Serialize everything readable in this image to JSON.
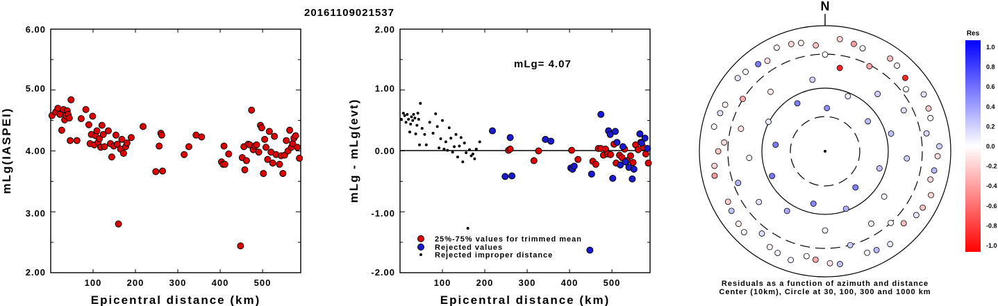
{
  "title": "20161109021537",
  "colors": {
    "accepted": "#dd0000",
    "rejected": "#1a1ad0",
    "improper": "#000000"
  },
  "left_panel": {
    "ylabel": "mLg(IASPEI)",
    "xlabel": "Epicentral distance (km)",
    "ytick_labels": [
      "6.00",
      "5.00",
      "4.00",
      "3.00",
      "2.00"
    ],
    "xtick_labels": [
      "100",
      "200",
      "300",
      "400",
      "500"
    ]
  },
  "mid_panel": {
    "ylabel": "mLg - mLg(evt)",
    "xlabel": "Epicentral distance (km)",
    "ytick_labels": [
      "2.00",
      "1.00",
      "0.00",
      "-1.00",
      "-2.00"
    ],
    "xtick_labels": [
      "100",
      "200",
      "300",
      "400",
      "500"
    ],
    "annotation": "mLg= 4.07",
    "legend": [
      {
        "label": "25%-75% values for trimmed mean",
        "kind": "accepted"
      },
      {
        "label": "Rejected values",
        "kind": "rejected"
      },
      {
        "label": "Rejected improper distance",
        "kind": "improper"
      }
    ]
  },
  "polar_panel": {
    "north_label": "N",
    "caption_line1": "Residuals as a function of azimuth and distance",
    "caption_line2": "Center (10km), Circle at 30, 100, 300 and 1000 km"
  },
  "colorbar": {
    "title": "Res",
    "tick_labels": [
      "1.0",
      "0.8",
      "0.6",
      "0.4",
      "0.2",
      "0.0",
      "-0.2",
      "-0.4",
      "-0.6",
      "-0.8",
      "-1.0"
    ]
  },
  "chart_data": [
    {
      "type": "scatter",
      "title": "20161109021537",
      "xlabel": "Epicentral distance (km)",
      "ylabel": "mLg(IASPEI)",
      "xlim": [
        0,
        590
      ],
      "ylim": [
        2.0,
        6.0
      ],
      "series": [
        {
          "kind": "accepted",
          "points": [
            [
              3,
              4.58
            ],
            [
              12,
              4.64
            ],
            [
              17,
              4.7
            ],
            [
              22,
              4.6
            ],
            [
              26,
              4.34
            ],
            [
              30,
              4.68
            ],
            [
              33,
              4.51
            ],
            [
              36,
              4.58
            ],
            [
              39,
              4.66
            ],
            [
              41,
              4.6
            ],
            [
              44,
              4.54
            ],
            [
              46,
              4.17
            ],
            [
              48,
              4.84
            ],
            [
              62,
              4.17
            ],
            [
              72,
              4.53
            ],
            [
              83,
              4.68
            ],
            [
              90,
              4.43
            ],
            [
              93,
              4.12
            ],
            [
              96,
              4.27
            ],
            [
              99,
              4.57
            ],
            [
              103,
              4.1
            ],
            [
              106,
              4.25
            ],
            [
              109,
              4.33
            ],
            [
              112,
              4.14
            ],
            [
              115,
              4.2
            ],
            [
              118,
              4.06
            ],
            [
              121,
              4.42
            ],
            [
              124,
              4.27
            ],
            [
              127,
              4.07
            ],
            [
              136,
              4.33
            ],
            [
              141,
              4.12
            ],
            [
              144,
              3.9
            ],
            [
              149,
              4.08
            ],
            [
              154,
              4.26
            ],
            [
              157,
              4.11
            ],
            [
              160,
              2.8
            ],
            [
              165,
              4.03
            ],
            [
              168,
              4.19
            ],
            [
              172,
              3.96
            ],
            [
              177,
              4.07
            ],
            [
              180,
              4.13
            ],
            [
              190,
              4.22
            ],
            [
              218,
              4.4
            ],
            [
              248,
              3.66
            ],
            [
              256,
              4.08
            ],
            [
              260,
              4.29
            ],
            [
              262,
              4.26
            ],
            [
              264,
              3.67
            ],
            [
              315,
              3.94
            ],
            [
              326,
              4.07
            ],
            [
              343,
              4.26
            ],
            [
              356,
              4.23
            ],
            [
              403,
              3.82
            ],
            [
              407,
              3.78
            ],
            [
              409,
              4.08
            ],
            [
              411,
              3.78
            ],
            [
              420,
              3.95
            ],
            [
              448,
              2.44
            ],
            [
              452,
              3.89
            ],
            [
              456,
              4.07
            ],
            [
              458,
              3.69
            ],
            [
              462,
              3.84
            ],
            [
              466,
              4.11
            ],
            [
              470,
              4.1
            ],
            [
              474,
              4.67
            ],
            [
              478,
              4.02
            ],
            [
              482,
              4.08
            ],
            [
              486,
              4.1
            ],
            [
              491,
              3.98
            ],
            [
              495,
              4.42
            ],
            [
              498,
              4.38
            ],
            [
              502,
              3.63
            ],
            [
              505,
              4.19
            ],
            [
              508,
              4.06
            ],
            [
              512,
              3.86
            ],
            [
              516,
              4.32
            ],
            [
              520,
              3.98
            ],
            [
              524,
              3.8
            ],
            [
              528,
              4.24
            ],
            [
              532,
              3.94
            ],
            [
              540,
              3.78
            ],
            [
              544,
              3.92
            ],
            [
              548,
              3.63
            ],
            [
              552,
              3.93
            ],
            [
              556,
              4.17
            ],
            [
              560,
              4.0
            ],
            [
              564,
              4.34
            ],
            [
              568,
              4.06
            ],
            [
              571,
              4.12
            ],
            [
              574,
              4.21
            ],
            [
              578,
              4.25
            ],
            [
              582,
              4.06
            ],
            [
              587,
              3.88
            ]
          ]
        }
      ]
    },
    {
      "type": "scatter",
      "xlabel": "Epicentral distance (km)",
      "ylabel": "mLg - mLg(evt)",
      "xlim": [
        0,
        590
      ],
      "ylim": [
        -2.0,
        2.0
      ],
      "hline": 0,
      "annotation": "mLg= 4.07",
      "series": [
        {
          "name": "25%-75% values for trimmed mean",
          "kind": "accepted",
          "points": [
            [
              256,
              0.01
            ],
            [
              260,
              0.03
            ],
            [
              316,
              -0.16
            ],
            [
              327,
              0.0
            ],
            [
              405,
              0.01
            ],
            [
              420,
              -0.14
            ],
            [
              455,
              -0.17
            ],
            [
              462,
              -0.22
            ],
            [
              468,
              0.04
            ],
            [
              474,
              0.04
            ],
            [
              480,
              -0.07
            ],
            [
              485,
              0.03
            ],
            [
              490,
              -0.05
            ],
            [
              497,
              -0.06
            ],
            [
              505,
              0.11
            ],
            [
              510,
              -0.2
            ],
            [
              518,
              -0.07
            ],
            [
              524,
              -0.11
            ],
            [
              530,
              0.03
            ],
            [
              536,
              -0.16
            ],
            [
              544,
              -0.08
            ],
            [
              550,
              -0.19
            ],
            [
              556,
              0.1
            ],
            [
              562,
              0.02
            ],
            [
              568,
              0.14
            ],
            [
              574,
              0.06
            ],
            [
              580,
              -0.05
            ],
            [
              586,
              -0.2
            ]
          ]
        },
        {
          "name": "Rejected values",
          "kind": "rejected",
          "points": [
            [
              218,
              0.33
            ],
            [
              248,
              -0.42
            ],
            [
              260,
              0.22
            ],
            [
              264,
              -0.41
            ],
            [
              343,
              0.19
            ],
            [
              356,
              0.16
            ],
            [
              403,
              -0.28
            ],
            [
              407,
              -0.3
            ],
            [
              411,
              -0.25
            ],
            [
              448,
              -1.63
            ],
            [
              452,
              -0.38
            ],
            [
              474,
              0.6
            ],
            [
              492,
              0.33
            ],
            [
              496,
              0.27
            ],
            [
              502,
              -0.45
            ],
            [
              508,
              0.32
            ],
            [
              512,
              0.14
            ],
            [
              520,
              -0.23
            ],
            [
              526,
              0.07
            ],
            [
              532,
              -0.18
            ],
            [
              540,
              -0.27
            ],
            [
              548,
              -0.46
            ],
            [
              552,
              -0.3
            ],
            [
              566,
              0.28
            ],
            [
              570,
              0.13
            ],
            [
              578,
              0.21
            ],
            [
              584,
              0.04
            ]
          ]
        },
        {
          "name": "Rejected improper distance",
          "kind": "improper",
          "points": [
            [
              3,
              0.52
            ],
            [
              8,
              0.62
            ],
            [
              11,
              0.58
            ],
            [
              14,
              0.47
            ],
            [
              17,
              0.6
            ],
            [
              20,
              0.52
            ],
            [
              23,
              0.31
            ],
            [
              25,
              0.44
            ],
            [
              27,
              0.56
            ],
            [
              30,
              0.5
            ],
            [
              32,
              0.6
            ],
            [
              35,
              0.54
            ],
            [
              37,
              0.28
            ],
            [
              40,
              0.42
            ],
            [
              42,
              0.62
            ],
            [
              44,
              0.52
            ],
            [
              46,
              0.1
            ],
            [
              48,
              0.78
            ],
            [
              52,
              0.37
            ],
            [
              58,
              0.27
            ],
            [
              62,
              0.1
            ],
            [
              70,
              0.47
            ],
            [
              78,
              0.29
            ],
            [
              84,
              0.61
            ],
            [
              88,
              0.4
            ],
            [
              92,
              0.05
            ],
            [
              96,
              0.2
            ],
            [
              100,
              0.5
            ],
            [
              104,
              0.03
            ],
            [
              108,
              0.15
            ],
            [
              112,
              0.01
            ],
            [
              116,
              0.38
            ],
            [
              120,
              0.21
            ],
            [
              124,
              -0.02
            ],
            [
              128,
              0.07
            ],
            [
              132,
              0.27
            ],
            [
              136,
              -0.1
            ],
            [
              140,
              0.08
            ],
            [
              144,
              0.22
            ],
            [
              148,
              -0.18
            ],
            [
              152,
              0.13
            ],
            [
              156,
              -0.03
            ],
            [
              160,
              -1.27
            ],
            [
              164,
              0.02
            ],
            [
              168,
              -0.08
            ],
            [
              172,
              -0.05
            ],
            [
              176,
              -0.13
            ],
            [
              180,
              0.03
            ],
            [
              188,
              0.15
            ]
          ]
        }
      ]
    }
  ]
}
